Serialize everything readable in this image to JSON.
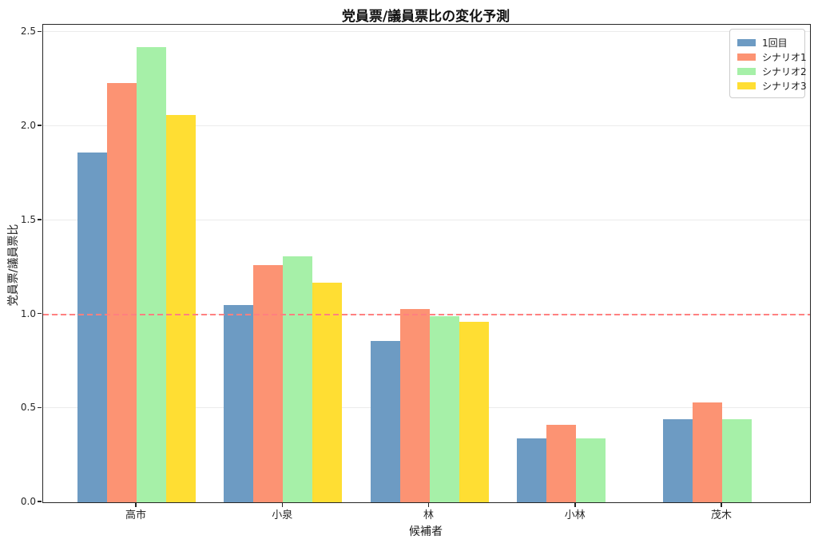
{
  "chart_data": {
    "type": "bar",
    "title": "党員票/議員票比の変化予測",
    "xlabel": "候補者",
    "ylabel": "党員票/議員票比",
    "categories": [
      "高市",
      "小泉",
      "林",
      "小林",
      "茂木"
    ],
    "series": [
      {
        "name": "1回目",
        "color": "#6d9bc3",
        "values": [
          1.86,
          1.05,
          0.86,
          0.34,
          0.44
        ]
      },
      {
        "name": "シナリオ1",
        "color": "#fc9373",
        "values": [
          2.23,
          1.26,
          1.03,
          0.41,
          0.53
        ]
      },
      {
        "name": "シナリオ2",
        "color": "#a6f0a8",
        "values": [
          2.42,
          1.31,
          0.99,
          0.34,
          0.44
        ]
      },
      {
        "name": "シナリオ3",
        "color": "#ffde33",
        "values": [
          2.06,
          1.17,
          0.96,
          0,
          0
        ]
      }
    ],
    "ylim": [
      0,
      2.54
    ],
    "yticks": [
      "0.0",
      "0.5",
      "1.0",
      "1.5",
      "2.0",
      "2.5"
    ],
    "reference_line": {
      "value": 1.0,
      "color": "#ff8080",
      "style": "dashed"
    },
    "grid": true,
    "legend_position": "upper right"
  }
}
